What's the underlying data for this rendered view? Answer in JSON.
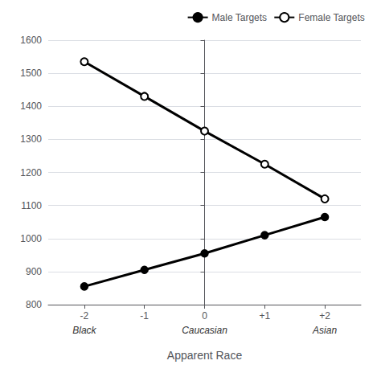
{
  "chart_data": {
    "type": "line",
    "x": [
      -2,
      -1,
      0,
      1,
      2
    ],
    "series": [
      {
        "name": "Male Targets",
        "color": "#000000",
        "marker": "circle",
        "values": [
          855,
          905,
          955,
          1010,
          1065
        ]
      },
      {
        "name": "Female Targets",
        "color": "#000000",
        "marker": "open_circle",
        "values": [
          1535,
          1430,
          1325,
          1225,
          1120
        ]
      }
    ],
    "xlabel": "Apparent Race",
    "xlim": [
      -2.6,
      2.6
    ],
    "xticks": [
      -2,
      -1,
      0,
      {
        "value": 1,
        "label": "+1"
      },
      {
        "value": 2,
        "label": "+2"
      }
    ],
    "ylim": [
      800,
      1600
    ],
    "yticks": [
      800,
      900,
      1000,
      1100,
      1200,
      1300,
      1400,
      1500,
      1600
    ],
    "grid": true,
    "legend": "upper right",
    "annotations": [
      {
        "text": "Black",
        "x": -2
      },
      {
        "text": "Caucasian",
        "x": 0
      },
      {
        "text": "Asian",
        "x": 2
      }
    ]
  }
}
